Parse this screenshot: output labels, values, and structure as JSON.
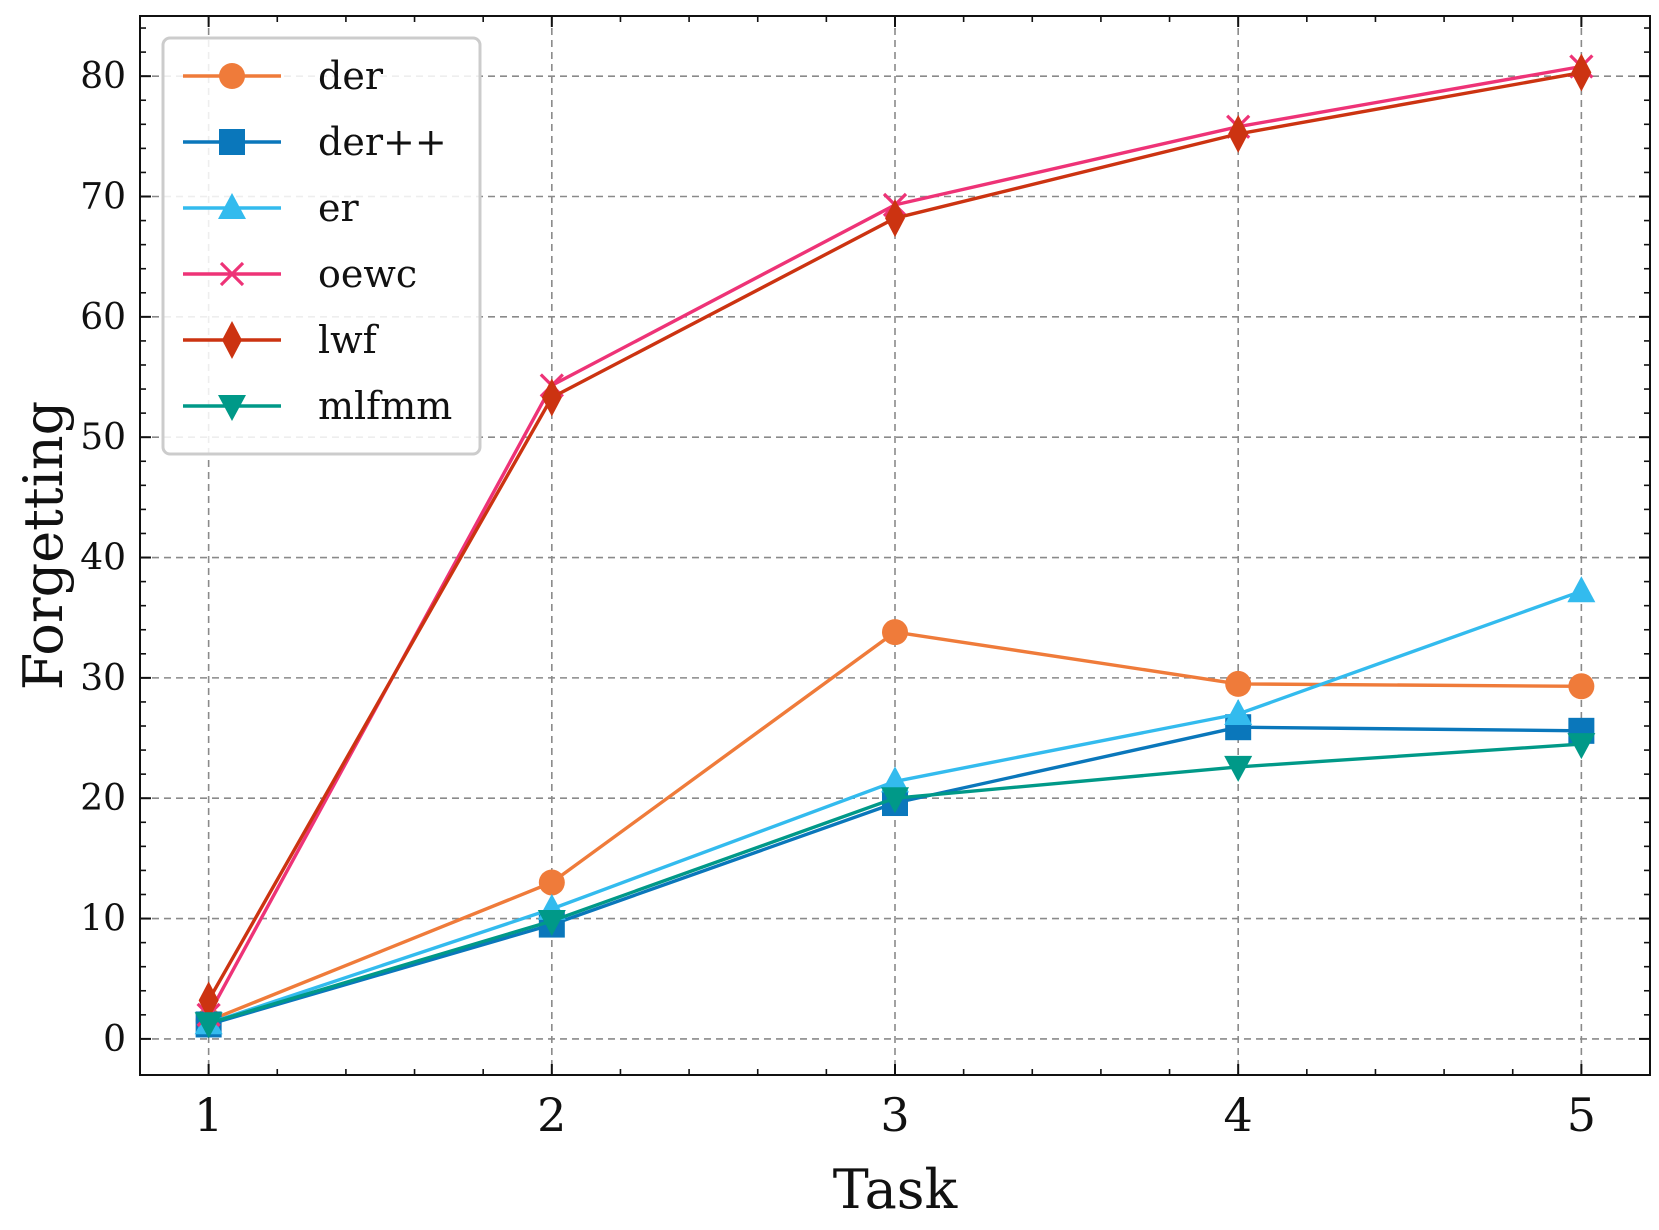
{
  "chart_data": {
    "type": "line",
    "title": "",
    "xlabel": "Task",
    "ylabel": "Forgetting",
    "x": [
      1,
      2,
      3,
      4,
      5
    ],
    "xlim": [
      0.8,
      5.2
    ],
    "ylim": [
      -3,
      85
    ],
    "xticks": [
      1,
      2,
      3,
      4,
      5
    ],
    "yticks": [
      0,
      10,
      20,
      30,
      40,
      50,
      60,
      70,
      80
    ],
    "grid": true,
    "legend_position": "top-left",
    "series": [
      {
        "name": "der",
        "values": [
          1.5,
          13.0,
          33.8,
          29.5,
          29.3
        ],
        "color": "#EF7B3A",
        "marker": "circle"
      },
      {
        "name": "der++",
        "values": [
          1.2,
          9.5,
          19.6,
          25.9,
          25.6
        ],
        "color": "#0A77BB",
        "marker": "square"
      },
      {
        "name": "er",
        "values": [
          1.3,
          10.8,
          21.4,
          27.0,
          37.2
        ],
        "color": "#33BBEE",
        "marker": "triangle-up"
      },
      {
        "name": "oewc",
        "values": [
          2.0,
          54.3,
          69.3,
          75.8,
          80.8
        ],
        "color": "#EE3377",
        "marker": "x"
      },
      {
        "name": "lwf",
        "values": [
          3.2,
          53.3,
          68.2,
          75.2,
          80.3
        ],
        "color": "#CC3311",
        "marker": "diamond"
      },
      {
        "name": "mlfmm",
        "values": [
          1.3,
          9.8,
          20.0,
          22.6,
          24.5
        ],
        "color": "#009988",
        "marker": "triangle-down"
      }
    ]
  }
}
